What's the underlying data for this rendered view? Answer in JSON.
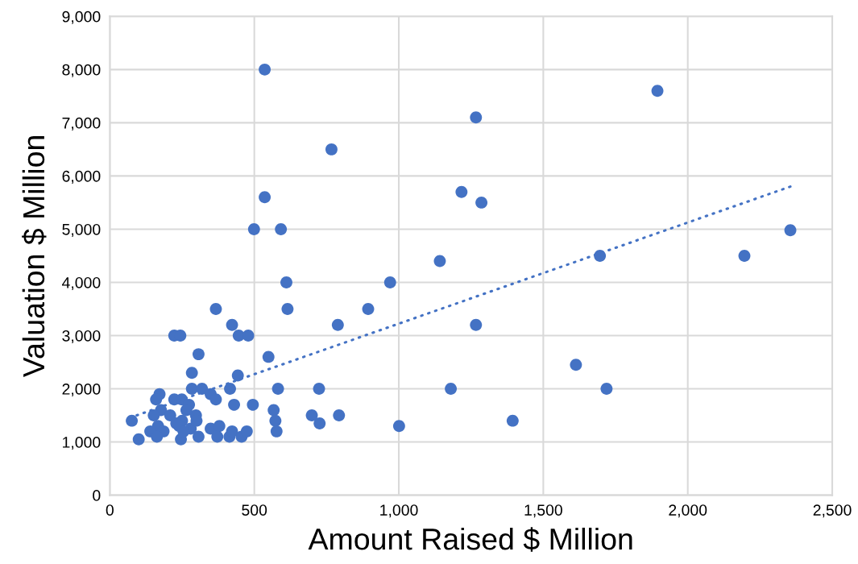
{
  "chart_data": {
    "type": "scatter",
    "xlabel": "Amount Raised $ Million",
    "ylabel": "Valuation $ Million",
    "xlim": [
      0,
      2500
    ],
    "xticks": [
      0,
      {
        "value": 500,
        "label": "500"
      },
      {
        "value": 1000,
        "label": "1,000"
      },
      {
        "value": 1500,
        "label": "1,500"
      },
      {
        "value": 2000,
        "label": "2,000"
      },
      {
        "value": 2500,
        "label": "2,500"
      }
    ],
    "ylim": [
      0,
      9000
    ],
    "yticks": [
      0,
      {
        "value": 1000,
        "label": "1,000"
      },
      {
        "value": 2000,
        "label": "2,000"
      },
      {
        "value": 3000,
        "label": "3,000"
      },
      {
        "value": 4000,
        "label": "4,000"
      },
      {
        "value": 5000,
        "label": "5,000"
      },
      {
        "value": 6000,
        "label": "6,000"
      },
      {
        "value": 7000,
        "label": "7,000"
      },
      {
        "value": 8000,
        "label": "8,000"
      },
      {
        "value": 9000,
        "label": "9,000"
      }
    ],
    "grid": true,
    "legend": false,
    "series": [
      {
        "marker": "circle",
        "color": "#4472c4",
        "x": [
          76,
          100,
          223,
          244,
          423,
          446,
          479,
          307,
          549,
          284,
          443,
          582,
          284,
          319,
          416,
          172,
          160,
          223,
          249,
          349,
          367,
          430,
          495,
          274,
          177,
          152,
          209,
          298,
          567,
          573,
          577,
          349,
          379,
          167,
          140,
          186,
          163,
          246,
          307,
          372,
          414,
          423,
          456,
          474,
          250,
          280,
          300,
          265,
          240,
          255,
          230,
          724,
          699,
          726,
          793,
          1001,
          615,
          894,
          789,
          499,
          592,
          611,
          970,
          367,
          536,
          767,
          536,
          1267,
          1217,
          1286,
          1142,
          1267,
          1180,
          1394,
          1613,
          1696,
          1719,
          1895,
          2196,
          2355
        ],
        "values": [
          1400,
          1050,
          3000,
          3000,
          3200,
          3000,
          3000,
          2650,
          2600,
          2300,
          2250,
          2000,
          2000,
          2000,
          2000,
          1900,
          1800,
          1800,
          1800,
          1900,
          1800,
          1700,
          1700,
          1700,
          1600,
          1500,
          1500,
          1500,
          1600,
          1400,
          1200,
          1250,
          1300,
          1300,
          1200,
          1200,
          1100,
          1050,
          1100,
          1100,
          1100,
          1200,
          1100,
          1200,
          1400,
          1250,
          1400,
          1600,
          1300,
          1200,
          1350,
          2000,
          1500,
          1350,
          1500,
          1300,
          3500,
          3500,
          3200,
          5000,
          5000,
          4000,
          4000,
          3500,
          8000,
          6500,
          5600,
          7100,
          5700,
          5500,
          4400,
          3200,
          2000,
          1400,
          2450,
          4500,
          2000,
          7600,
          4500,
          4980
        ]
      },
      {
        "type": "line",
        "marker": "none",
        "line_style": "dotted",
        "color": "#4472c4",
        "x": [
          93,
          2355
        ],
        "values": [
          1500,
          5800
        ]
      }
    ]
  }
}
